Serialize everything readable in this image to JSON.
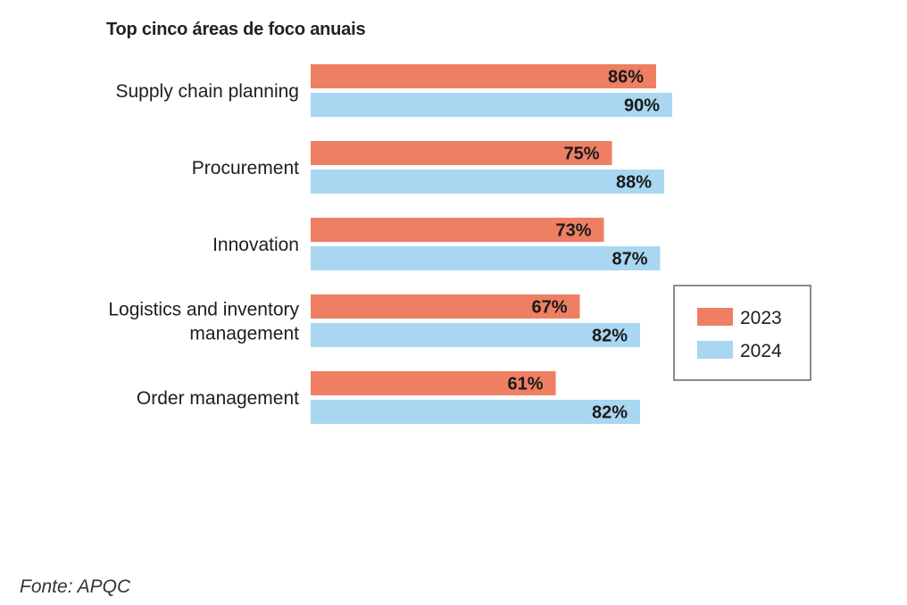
{
  "header": {
    "title": "Top cinco áreas de foco anuais"
  },
  "footer": {
    "source": "Fonte: APQC"
  },
  "colors": {
    "series_2023": "#EE7F63",
    "series_2024": "#A9D7F2",
    "legend_border": "#666666"
  },
  "chart_data": {
    "type": "bar",
    "orientation": "horizontal",
    "title": "Top cinco áreas de foco anuais",
    "xlabel": "",
    "ylabel": "",
    "xlim": [
      0,
      100
    ],
    "grid": false,
    "legend": "right",
    "categories": [
      [
        "Supply chain planning"
      ],
      [
        "Procurement"
      ],
      [
        "Innovation"
      ],
      [
        "Logistics and inventory",
        "management"
      ],
      [
        "Order management"
      ]
    ],
    "series": [
      {
        "name": "2023",
        "values": [
          86,
          75,
          73,
          67,
          61
        ],
        "labels": [
          "86%",
          "75%",
          "73%",
          "67%",
          "61%"
        ]
      },
      {
        "name": "2024",
        "values": [
          90,
          88,
          87,
          82,
          82
        ],
        "labels": [
          "90%",
          "88%",
          "87%",
          "82%",
          "82%"
        ]
      }
    ]
  }
}
